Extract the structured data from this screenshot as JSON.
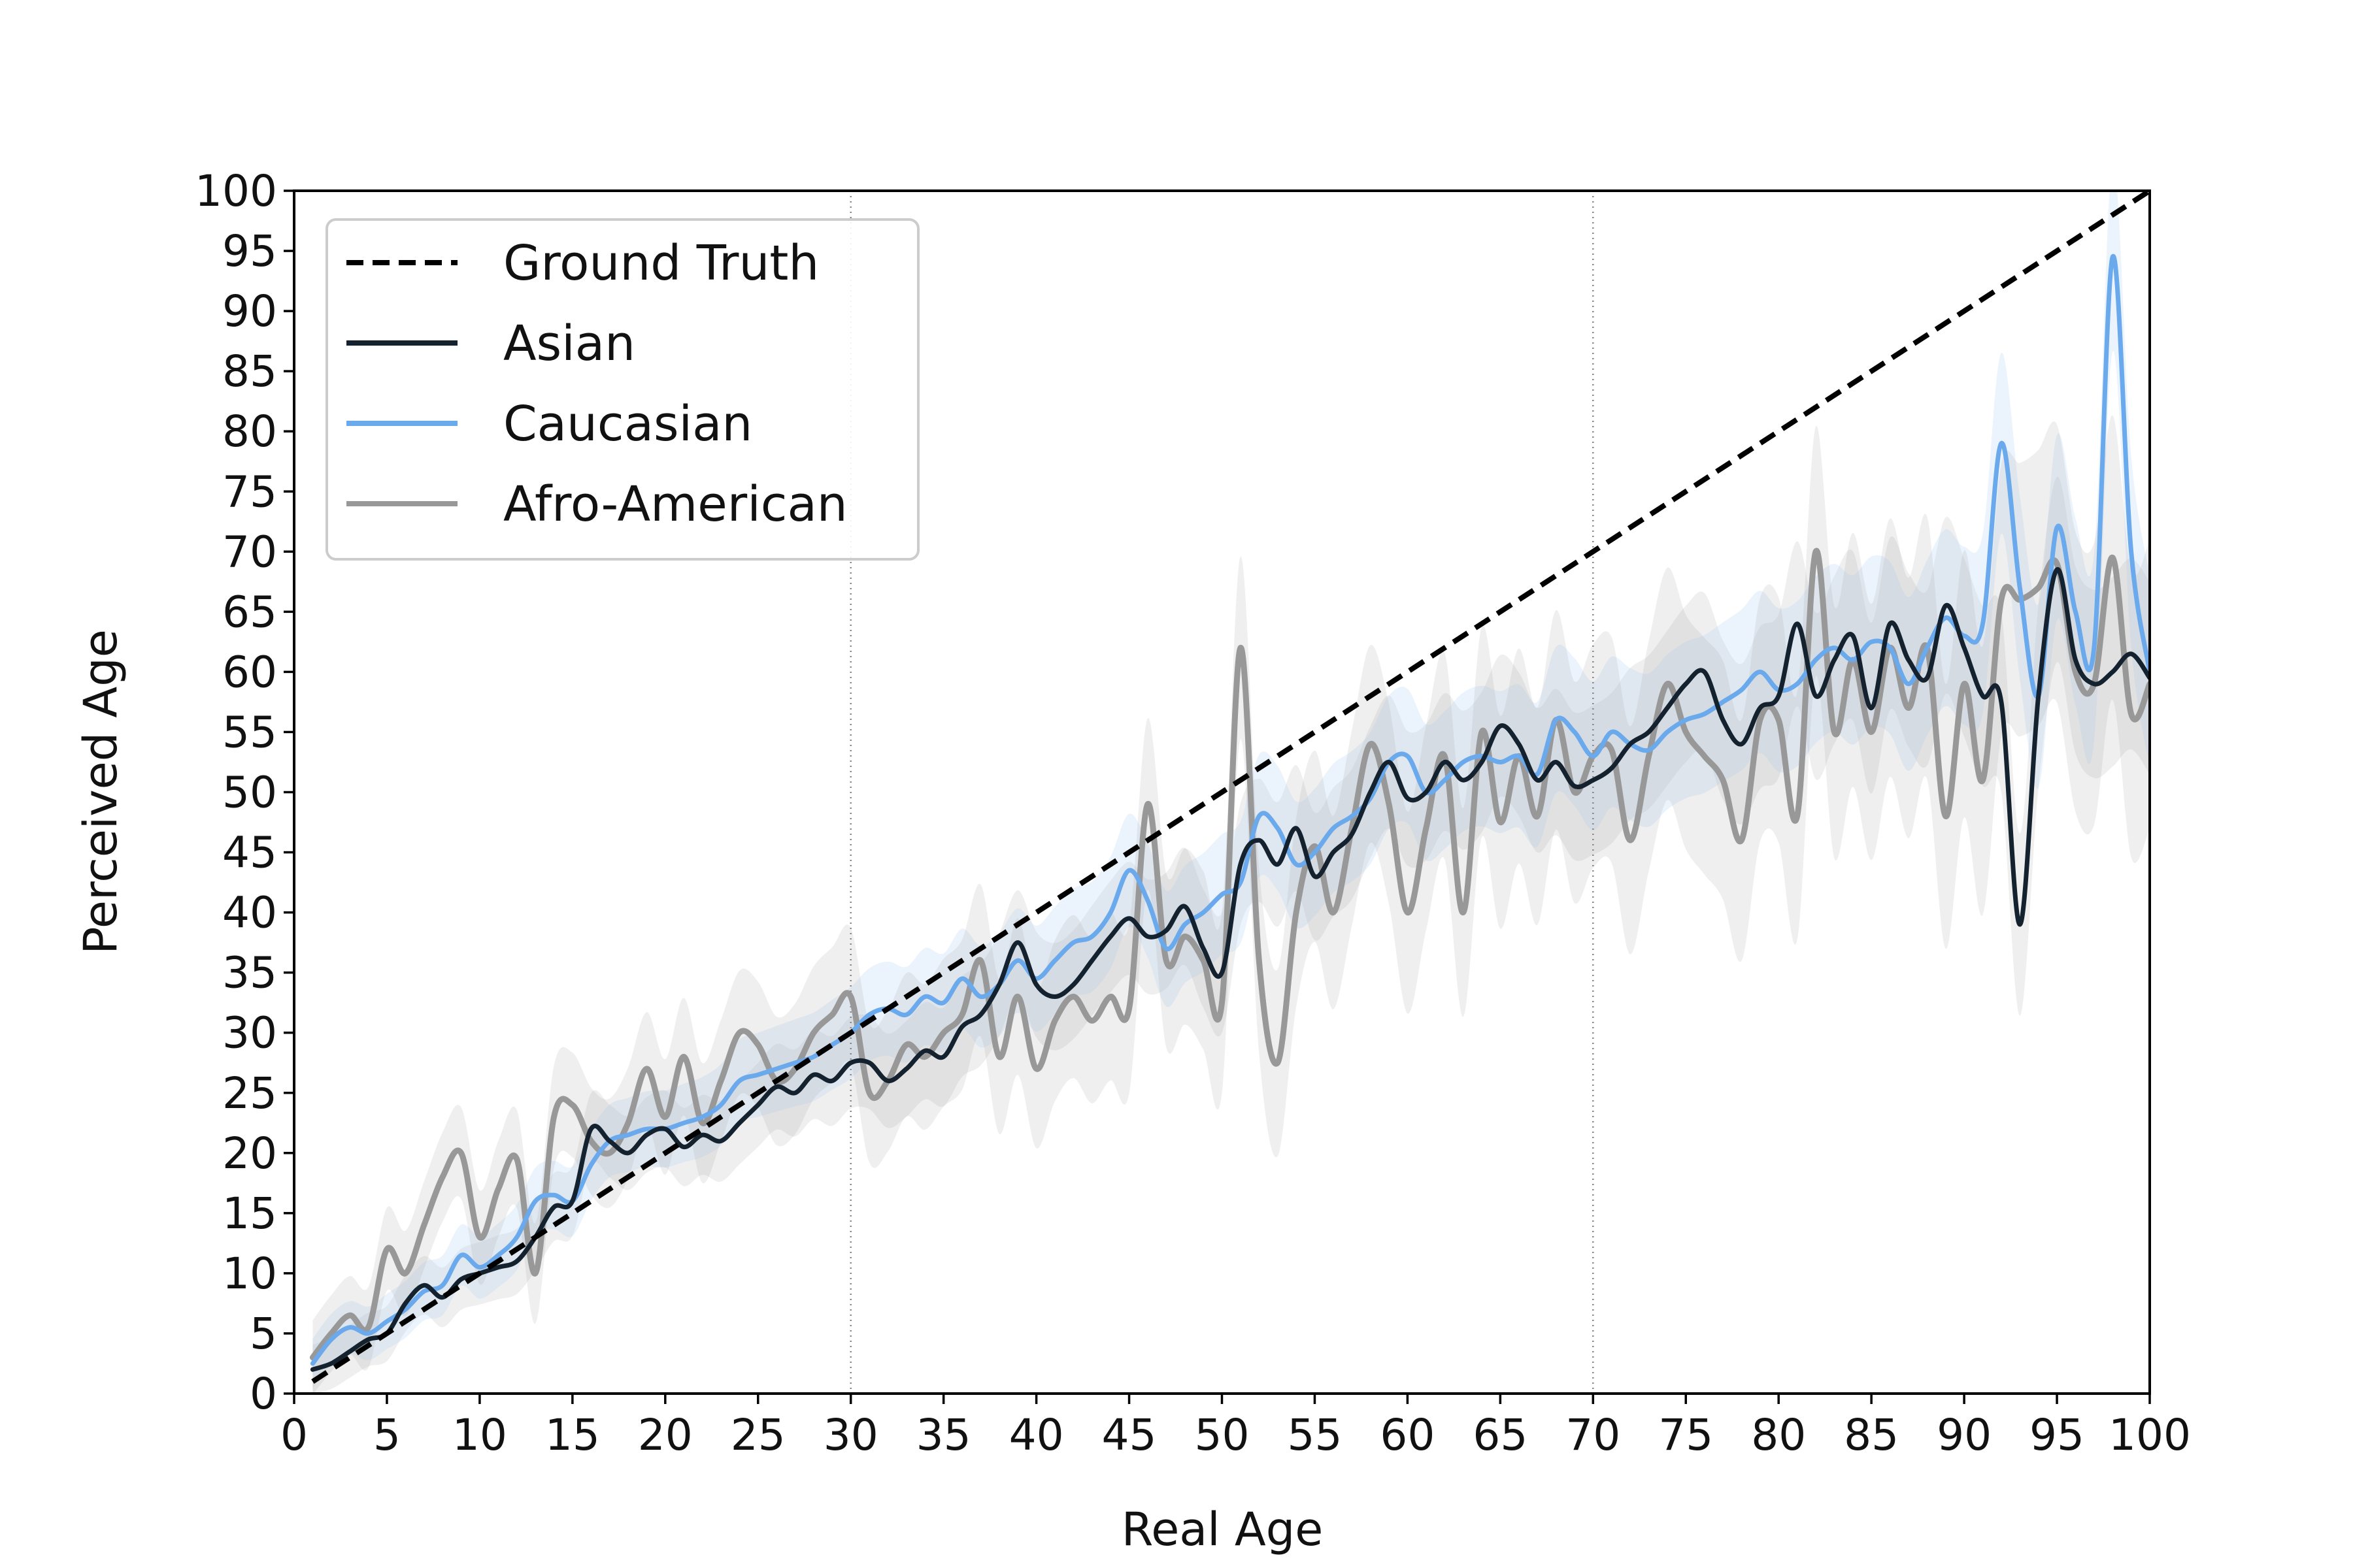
{
  "chart_data": {
    "type": "line",
    "title": "",
    "xlabel": "Real Age",
    "ylabel": "Perceived Age",
    "xlim": [
      0,
      100
    ],
    "ylim": [
      0,
      100
    ],
    "x_ticks": [
      "0",
      "5",
      "10",
      "15",
      "20",
      "25",
      "30",
      "35",
      "40",
      "45",
      "50",
      "55",
      "60",
      "65",
      "70",
      "75",
      "80",
      "85",
      "90",
      "95",
      "100"
    ],
    "y_ticks": [
      "0",
      "5",
      "10",
      "15",
      "20",
      "25",
      "30",
      "35",
      "40",
      "45",
      "50",
      "55",
      "60",
      "65",
      "70",
      "75",
      "80",
      "85",
      "90",
      "95",
      "100"
    ],
    "vertical_reference_lines": [
      30,
      70
    ],
    "grid": false,
    "legend_position": "upper-left",
    "x": [
      1,
      2,
      3,
      4,
      5,
      6,
      7,
      8,
      9,
      10,
      11,
      12,
      13,
      14,
      15,
      16,
      17,
      18,
      19,
      20,
      21,
      22,
      23,
      24,
      25,
      26,
      27,
      28,
      29,
      30,
      31,
      32,
      33,
      34,
      35,
      36,
      37,
      38,
      39,
      40,
      41,
      42,
      43,
      44,
      45,
      46,
      47,
      48,
      49,
      50,
      51,
      52,
      53,
      54,
      55,
      56,
      57,
      58,
      59,
      60,
      61,
      62,
      63,
      64,
      65,
      66,
      67,
      68,
      69,
      70,
      71,
      72,
      73,
      74,
      75,
      76,
      77,
      78,
      79,
      80,
      81,
      82,
      83,
      84,
      85,
      86,
      87,
      88,
      89,
      90,
      91,
      92,
      93,
      94,
      95,
      96,
      97,
      98,
      99,
      100
    ],
    "series": [
      {
        "name": "Ground Truth",
        "style": "dashed",
        "color": "#000000",
        "points": [
          [
            1,
            1
          ],
          [
            100,
            100
          ]
        ]
      },
      {
        "name": "Asian",
        "style": "solid",
        "color": "#14212e",
        "values": [
          2.0,
          2.5,
          3.5,
          4.5,
          5.0,
          7.5,
          9.0,
          8.0,
          9.5,
          10.0,
          10.5,
          11.0,
          13.0,
          15.5,
          16.0,
          22.0,
          21.0,
          20.0,
          21.5,
          22.0,
          20.5,
          21.5,
          21.0,
          22.5,
          24.0,
          25.5,
          25.0,
          26.5,
          26.0,
          27.5,
          27.5,
          26.0,
          27.0,
          28.5,
          28.0,
          30.5,
          31.5,
          34.0,
          37.5,
          34.0,
          33.0,
          34.0,
          36.0,
          38.0,
          39.5,
          38.0,
          38.5,
          40.5,
          37.0,
          35.0,
          44.0,
          46.0,
          44.0,
          47.0,
          43.0,
          45.0,
          46.5,
          50.0,
          52.5,
          49.5,
          50.0,
          52.5,
          51.0,
          52.5,
          55.5,
          54.0,
          51.0,
          52.5,
          50.5,
          51.0,
          52.0,
          54.0,
          55.0,
          57.0,
          59.0,
          60.0,
          56.0,
          54.0,
          57.0,
          58.0,
          64.0,
          58.0,
          61.0,
          63.0,
          57.0,
          64.0,
          61.0,
          59.5,
          65.5,
          62.0,
          58.0,
          57.5,
          39.0,
          58.0,
          68.5,
          61.0,
          59.0,
          60.0,
          61.5,
          59.5
        ]
      },
      {
        "name": "Caucasian",
        "style": "solid",
        "color": "#6aa9ec",
        "values": [
          2.5,
          4.5,
          5.5,
          5.0,
          6.0,
          7.0,
          8.5,
          9.0,
          11.5,
          10.5,
          11.5,
          13.0,
          16.0,
          16.5,
          16.0,
          19.0,
          21.0,
          21.5,
          22.0,
          22.0,
          22.5,
          23.0,
          24.0,
          26.0,
          26.5,
          27.0,
          27.5,
          28.0,
          29.0,
          30.0,
          31.5,
          32.0,
          31.5,
          33.0,
          32.5,
          34.5,
          33.0,
          34.0,
          36.0,
          34.5,
          36.0,
          37.5,
          38.0,
          40.0,
          43.5,
          41.0,
          37.0,
          39.0,
          40.0,
          41.5,
          42.5,
          48.0,
          47.0,
          44.0,
          45.0,
          47.0,
          48.0,
          49.5,
          52.5,
          53.0,
          50.0,
          51.0,
          52.5,
          53.0,
          52.5,
          53.0,
          51.5,
          56.0,
          55.0,
          53.0,
          55.0,
          54.0,
          53.5,
          55.0,
          56.0,
          56.5,
          57.5,
          58.5,
          60.0,
          58.5,
          59.0,
          61.0,
          62.0,
          61.0,
          62.5,
          62.0,
          59.0,
          62.0,
          64.5,
          63.0,
          64.0,
          79.0,
          67.0,
          58.0,
          72.0,
          65.0,
          62.0,
          94.5,
          70.0,
          60.0
        ]
      },
      {
        "name": "Afro-American",
        "style": "solid",
        "color": "#989898",
        "values": [
          3.0,
          5.0,
          6.5,
          5.5,
          12.0,
          10.0,
          14.0,
          18.0,
          20.0,
          13.0,
          17.0,
          19.5,
          10.0,
          23.0,
          24.0,
          21.0,
          20.0,
          22.5,
          27.0,
          23.0,
          28.0,
          22.5,
          26.0,
          30.0,
          29.0,
          26.0,
          27.0,
          30.0,
          31.5,
          33.0,
          25.0,
          26.0,
          29.0,
          28.0,
          30.0,
          31.5,
          36.0,
          28.0,
          33.0,
          27.0,
          31.0,
          33.0,
          31.0,
          33.0,
          32.0,
          49.0,
          36.0,
          38.0,
          36.0,
          32.5,
          62.0,
          36.0,
          27.5,
          40.0,
          45.5,
          40.0,
          47.0,
          54.0,
          49.0,
          40.0,
          47.0,
          53.0,
          40.0,
          55.0,
          47.5,
          53.0,
          48.0,
          56.0,
          50.0,
          53.0,
          53.5,
          46.0,
          53.0,
          59.0,
          55.0,
          53.0,
          51.0,
          46.0,
          56.0,
          56.0,
          48.0,
          70.0,
          55.0,
          61.0,
          55.0,
          62.0,
          57.0,
          62.0,
          48.0,
          59.0,
          51.0,
          66.0,
          66.0,
          67.0,
          69.0,
          60.0,
          59.0,
          69.5,
          56.5,
          59.0
        ]
      }
    ]
  },
  "legend": {
    "items": [
      {
        "label": "Ground Truth",
        "style": "dashed",
        "color": "#000000"
      },
      {
        "label": "Asian",
        "style": "solid",
        "color": "#14212e"
      },
      {
        "label": "Caucasian",
        "style": "solid",
        "color": "#6aa9ec"
      },
      {
        "label": "Afro-American",
        "style": "solid",
        "color": "#989898"
      }
    ]
  }
}
